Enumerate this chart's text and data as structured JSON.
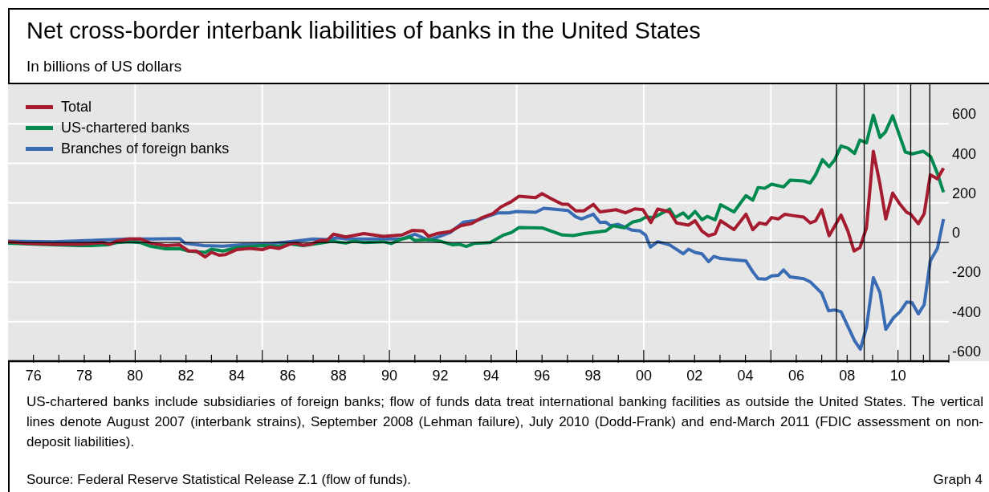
{
  "chart_data": {
    "type": "line",
    "title": "Net cross-border interbank liabilities of banks in the United States",
    "subtitle": "In billions of US dollars",
    "series": [
      {
        "name": "Total",
        "color": "#a51c30",
        "x": [
          1975.0,
          1975.75,
          1976.8,
          1977.85,
          1978.7,
          1979.0,
          1979.3,
          1979.75,
          1980.2,
          1980.6,
          1981.2,
          1981.75,
          1982.1,
          1982.4,
          1982.75,
          1983.0,
          1983.3,
          1983.55,
          1984.0,
          1984.5,
          1985.0,
          1985.3,
          1985.65,
          1986.07,
          1986.3,
          1986.6,
          1986.9,
          1987.3,
          1987.55,
          1987.8,
          1988.28,
          1989.0,
          1989.75,
          1990.49,
          1990.9,
          1991.33,
          1991.54,
          1991.86,
          1992.39,
          1992.8,
          1993.23,
          1993.65,
          1994.07,
          1994.39,
          1994.8,
          1995.1,
          1995.75,
          1996.0,
          1996.39,
          1996.8,
          1997.02,
          1997.33,
          1997.65,
          1998.02,
          1998.28,
          1998.91,
          1999.28,
          1999.65,
          1999.97,
          2000.28,
          2000.55,
          2001.02,
          2001.29,
          2001.76,
          2002.02,
          2002.29,
          2002.55,
          2002.81,
          2003.02,
          2003.55,
          2004.02,
          2004.29,
          2004.55,
          2004.81,
          2005.03,
          2005.29,
          2005.55,
          2005.87,
          2006.29,
          2006.55,
          2006.76,
          2007.0,
          2007.29,
          2007.76,
          2008.03,
          2008.27,
          2008.5,
          2008.76,
          2009.03,
          2009.29,
          2009.52,
          2009.79,
          2010.08,
          2010.34,
          2010.5,
          2010.8,
          2011.03,
          2011.27,
          2011.55,
          2011.79
        ],
        "values": [
          4,
          -5,
          -9,
          -9,
          0,
          -9,
          8,
          18,
          18,
          -3,
          -16,
          -12,
          -43,
          -43,
          -73,
          -50,
          -64,
          -61,
          -36,
          -30,
          -36,
          -23,
          -30,
          -9,
          -3,
          -14,
          -9,
          11,
          11,
          42,
          28,
          45,
          31,
          38,
          61,
          58,
          31,
          45,
          55,
          85,
          96,
          126,
          146,
          180,
          207,
          234,
          227,
          247,
          220,
          193,
          193,
          160,
          160,
          193,
          155,
          166,
          150,
          170,
          166,
          101,
          169,
          155,
          99,
          88,
          110,
          58,
          34,
          45,
          110,
          65,
          143,
          65,
          99,
          92,
          126,
          119,
          143,
          136,
          128,
          99,
          110,
          166,
          34,
          139,
          58,
          -43,
          -26,
          74,
          461,
          295,
          119,
          250,
          193,
          153,
          143,
          95,
          146,
          342,
          322,
          376
        ]
      },
      {
        "name": "US-chartered banks",
        "color": "#00894f",
        "x": [
          1975.0,
          1976.8,
          1977.85,
          1978.27,
          1978.9,
          1979.3,
          1979.75,
          1980.2,
          1980.6,
          1981.2,
          1981.75,
          1982.1,
          1982.75,
          1983.0,
          1983.45,
          1984.0,
          1985.0,
          1985.65,
          1986.07,
          1986.6,
          1987.3,
          1987.75,
          1988.28,
          1988.6,
          1989.0,
          1989.75,
          1990.07,
          1990.49,
          1990.8,
          1991.0,
          1991.54,
          1991.96,
          1992.49,
          1992.76,
          1993.02,
          1993.33,
          1993.96,
          1994.49,
          1994.8,
          1995.1,
          1996.0,
          1996.8,
          1997.23,
          1997.65,
          1998.5,
          1998.8,
          1999.23,
          1999.55,
          1999.86,
          2000.07,
          2000.4,
          2001.02,
          2001.23,
          2001.55,
          2001.76,
          2002.02,
          2002.29,
          2002.5,
          2002.81,
          2003.02,
          2003.55,
          2004.02,
          2004.29,
          2004.5,
          2004.76,
          2005.03,
          2005.5,
          2005.76,
          2006.29,
          2006.55,
          2006.76,
          2007.03,
          2007.29,
          2007.5,
          2007.76,
          2008.03,
          2008.29,
          2008.5,
          2008.76,
          2009.03,
          2009.29,
          2009.5,
          2009.79,
          2010.29,
          2010.55,
          2011.0,
          2011.29,
          2011.55,
          2011.79
        ],
        "values": [
          -3,
          -12,
          -16,
          -16,
          -12,
          0,
          4,
          0,
          -19,
          -32,
          -31,
          -43,
          -50,
          -34,
          -43,
          -26,
          -16,
          -19,
          -7,
          -16,
          -3,
          7,
          -3,
          7,
          0,
          4,
          -5,
          18,
          27,
          11,
          15,
          8,
          -12,
          -9,
          -20,
          -5,
          0,
          38,
          51,
          76,
          74,
          38,
          35,
          45,
          58,
          85,
          74,
          103,
          112,
          128,
          126,
          169,
          126,
          150,
          123,
          157,
          115,
          132,
          115,
          191,
          155,
          237,
          214,
          278,
          274,
          295,
          281,
          315,
          311,
          301,
          342,
          419,
          383,
          416,
          488,
          477,
          450,
          518,
          504,
          644,
          531,
          558,
          640,
          457,
          448,
          461,
          433,
          349,
          254
        ]
      },
      {
        "name": "Branches of foreign banks",
        "color": "#3a6cb4",
        "x": [
          1975.0,
          1976.8,
          1978.9,
          1979.75,
          1980.6,
          1981.75,
          1981.96,
          1982.7,
          1983.45,
          1984.2,
          1985.2,
          1986.07,
          1987.0,
          1987.55,
          1987.96,
          1988.28,
          1990.49,
          1991.0,
          1991.54,
          1991.96,
          1992.39,
          1992.91,
          1993.44,
          1993.86,
          1994.28,
          1994.7,
          1995.0,
          1995.75,
          1996.07,
          1997.02,
          1997.33,
          1997.55,
          1998.02,
          1998.28,
          1998.5,
          1998.7,
          1999.0,
          1999.55,
          1999.86,
          2000.07,
          2000.26,
          2000.55,
          2001.02,
          2001.55,
          2001.76,
          2002.02,
          2002.29,
          2002.55,
          2002.76,
          2003.02,
          2003.55,
          2004.02,
          2004.29,
          2004.5,
          2004.81,
          2005.03,
          2005.29,
          2005.5,
          2005.76,
          2006.29,
          2006.55,
          2007.0,
          2007.27,
          2007.5,
          2007.76,
          2008.29,
          2008.52,
          2008.76,
          2009.03,
          2009.29,
          2009.52,
          2009.82,
          2010.08,
          2010.34,
          2010.55,
          2010.8,
          2011.03,
          2011.27,
          2011.55,
          2011.79
        ],
        "values": [
          7,
          4,
          14,
          18,
          18,
          20,
          -4,
          -16,
          -19,
          -12,
          -7,
          4,
          18,
          15,
          24,
          18,
          18,
          42,
          11,
          31,
          51,
          103,
          112,
          132,
          150,
          150,
          157,
          153,
          173,
          162,
          130,
          119,
          143,
          101,
          103,
          85,
          92,
          62,
          58,
          38,
          -23,
          4,
          -12,
          -57,
          -34,
          -50,
          -57,
          -97,
          -70,
          -81,
          -88,
          -93,
          -148,
          -183,
          -185,
          -169,
          -166,
          -139,
          -174,
          -183,
          -199,
          -256,
          -345,
          -341,
          -350,
          -496,
          -540,
          -429,
          -178,
          -253,
          -439,
          -381,
          -350,
          -301,
          -304,
          -361,
          -314,
          -93,
          -30,
          119
        ]
      }
    ],
    "xlim": [
      1975,
      2012
    ],
    "xticks": [
      {
        "value": 1976,
        "label": "76"
      },
      {
        "value": 1977,
        "label": null
      },
      {
        "value": 1978,
        "label": "78"
      },
      {
        "value": 1979,
        "label": null
      },
      {
        "value": 1980,
        "label": "80"
      },
      {
        "value": 1981,
        "label": null
      },
      {
        "value": 1982,
        "label": "82"
      },
      {
        "value": 1983,
        "label": null
      },
      {
        "value": 1984,
        "label": "84"
      },
      {
        "value": 1985,
        "label": null
      },
      {
        "value": 1986,
        "label": "86"
      },
      {
        "value": 1987,
        "label": null
      },
      {
        "value": 1988,
        "label": "88"
      },
      {
        "value": 1989,
        "label": null
      },
      {
        "value": 1990,
        "label": "90"
      },
      {
        "value": 1991,
        "label": null
      },
      {
        "value": 1992,
        "label": "92"
      },
      {
        "value": 1993,
        "label": null
      },
      {
        "value": 1994,
        "label": "94"
      },
      {
        "value": 1995,
        "label": null
      },
      {
        "value": 1996,
        "label": "96"
      },
      {
        "value": 1997,
        "label": null
      },
      {
        "value": 1998,
        "label": "98"
      },
      {
        "value": 1999,
        "label": null
      },
      {
        "value": 2000,
        "label": "00"
      },
      {
        "value": 2001,
        "label": null
      },
      {
        "value": 2002,
        "label": "02"
      },
      {
        "value": 2003,
        "label": null
      },
      {
        "value": 2004,
        "label": "04"
      },
      {
        "value": 2005,
        "label": null
      },
      {
        "value": 2006,
        "label": "06"
      },
      {
        "value": 2007,
        "label": null
      },
      {
        "value": 2008,
        "label": "08"
      },
      {
        "value": 2009,
        "label": null
      },
      {
        "value": 2010,
        "label": "10"
      },
      {
        "value": 2011,
        "label": null
      },
      {
        "value": 2012,
        "label": null
      }
    ],
    "ylim": [
      -600,
      800
    ],
    "yticks": [
      -600,
      -400,
      -200,
      0,
      200,
      400,
      600
    ],
    "ref_lines": [
      {
        "axis": "y",
        "value": 0,
        "color": "#000000"
      },
      {
        "axis": "x",
        "value": 2007.58,
        "color": "#000000"
      },
      {
        "axis": "x",
        "value": 2008.67,
        "color": "#000000"
      },
      {
        "axis": "x",
        "value": 2010.5,
        "color": "#000000"
      },
      {
        "axis": "x",
        "value": 2011.25,
        "color": "#000000"
      }
    ],
    "grid": true,
    "legend": "top left",
    "marker": "none",
    "line_style": "solid",
    "annotations": [
      "US-chartered banks include subsidiaries of foreign banks; flow of funds data treat international banking facilities as outside the United States. The vertical lines denote August 2007 (interbank strains), September 2008 (Lehman failure), July 2010 (Dodd-Frank) and end-March 2011 (FDIC assessment on non-deposit liabilities).",
      "Source: Federal Reserve Statistical Release Z.1 (flow of funds).",
      "Graph 4"
    ]
  }
}
